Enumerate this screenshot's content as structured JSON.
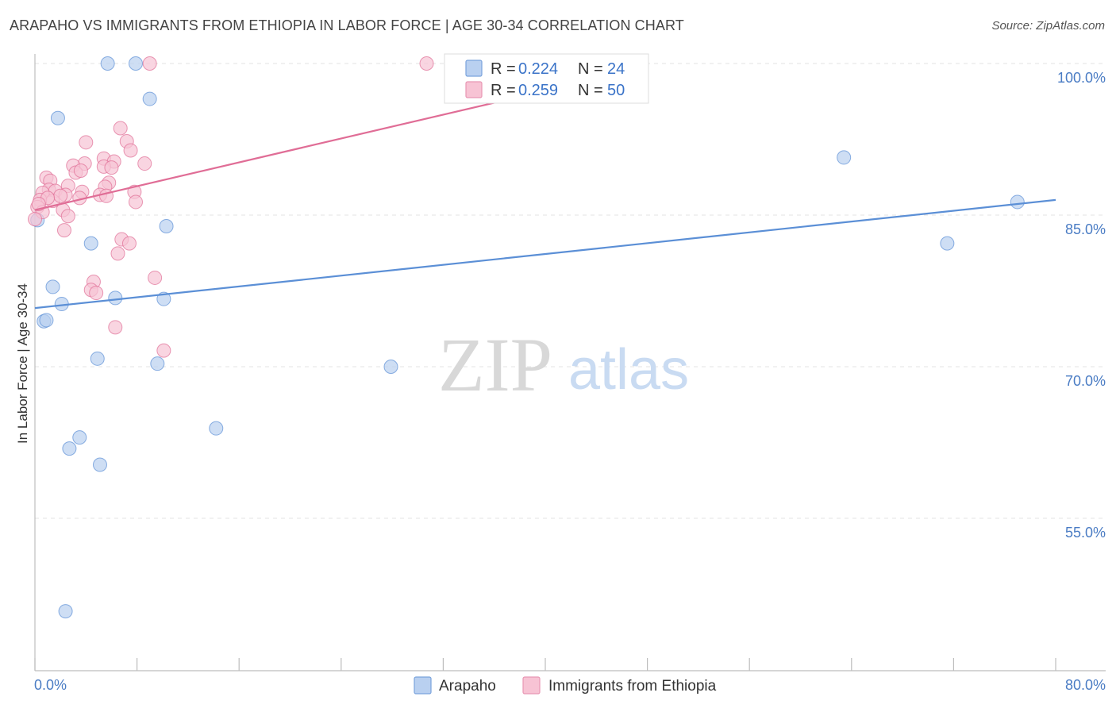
{
  "header": {
    "title": "ARAPAHO VS IMMIGRANTS FROM ETHIOPIA IN LABOR FORCE | AGE 30-34 CORRELATION CHART",
    "source": "Source: ZipAtlas.com"
  },
  "watermark": {
    "zip": "ZIP",
    "atlas": "atlas"
  },
  "chart_data": {
    "type": "scatter",
    "title": "ARAPAHO VS IMMIGRANTS FROM ETHIOPIA IN LABOR FORCE | AGE 30-34 CORRELATION CHART",
    "ylabel": "In Labor Force | Age 30-34",
    "xlabel": "",
    "xlim": [
      0,
      80
    ],
    "ylim": [
      40,
      102
    ],
    "x_tick_labels": {
      "left": "0.0%",
      "right": "80.0%"
    },
    "y_ticks": [
      {
        "value": 100,
        "label": "100.0%"
      },
      {
        "value": 85,
        "label": "85.0%"
      },
      {
        "value": 70,
        "label": "70.0%"
      },
      {
        "value": 55,
        "label": "55.0%"
      }
    ],
    "legend": [
      {
        "series": "Arapaho",
        "r_label": "R =",
        "r": "0.224",
        "n_label": "N =",
        "n": "24"
      },
      {
        "series": "Immigrants from Ethiopia",
        "r_label": "R =",
        "r": "0.259",
        "n_label": "N =",
        "n": "50"
      }
    ],
    "series": [
      {
        "name": "Arapaho",
        "color": "#5b8fd6",
        "fill": "#b9d0f0",
        "trend": {
          "x0": 0,
          "y0": 75.8,
          "x1": 80,
          "y1": 86.5
        },
        "points": [
          [
            5.7,
            100
          ],
          [
            7.9,
            100
          ],
          [
            9.0,
            96.5
          ],
          [
            1.8,
            94.6
          ],
          [
            0.2,
            84.5
          ],
          [
            4.4,
            82.2
          ],
          [
            10.3,
            83.9
          ],
          [
            1.4,
            77.9
          ],
          [
            2.1,
            76.2
          ],
          [
            6.3,
            76.8
          ],
          [
            10.1,
            76.7
          ],
          [
            0.7,
            74.5
          ],
          [
            0.9,
            74.6
          ],
          [
            4.9,
            70.8
          ],
          [
            9.6,
            70.3
          ],
          [
            27.9,
            70.0
          ],
          [
            3.5,
            63.0
          ],
          [
            2.7,
            61.9
          ],
          [
            14.2,
            63.9
          ],
          [
            5.1,
            60.3
          ],
          [
            2.4,
            45.8
          ],
          [
            63.4,
            90.7
          ],
          [
            71.5,
            82.2
          ],
          [
            77.0,
            86.3
          ]
        ]
      },
      {
        "name": "Immigrants from Ethiopia",
        "color": "#e06d96",
        "fill": "#f7c3d4",
        "trend": {
          "x0": 0,
          "y0": 85.5,
          "x1": 39,
          "y1": 97.0
        },
        "points": [
          [
            30.7,
            100
          ],
          [
            9.0,
            100
          ],
          [
            6.7,
            93.6
          ],
          [
            7.2,
            92.3
          ],
          [
            4.0,
            92.2
          ],
          [
            7.5,
            91.4
          ],
          [
            5.4,
            90.6
          ],
          [
            6.2,
            90.3
          ],
          [
            8.6,
            90.1
          ],
          [
            3.9,
            90.1
          ],
          [
            3.0,
            89.9
          ],
          [
            5.4,
            89.8
          ],
          [
            6.0,
            89.7
          ],
          [
            3.2,
            89.2
          ],
          [
            0.9,
            88.7
          ],
          [
            1.2,
            88.4
          ],
          [
            5.8,
            88.2
          ],
          [
            2.6,
            87.9
          ],
          [
            5.5,
            87.8
          ],
          [
            1.1,
            87.5
          ],
          [
            1.6,
            87.4
          ],
          [
            7.8,
            87.3
          ],
          [
            0.6,
            87.2
          ],
          [
            3.7,
            87.3
          ],
          [
            2.4,
            87.0
          ],
          [
            5.1,
            87.0
          ],
          [
            5.6,
            86.9
          ],
          [
            3.5,
            86.7
          ],
          [
            0.4,
            86.5
          ],
          [
            1.4,
            86.4
          ],
          [
            7.9,
            86.3
          ],
          [
            0.2,
            85.8
          ],
          [
            2.2,
            85.5
          ],
          [
            0.6,
            85.3
          ],
          [
            2.6,
            84.9
          ],
          [
            0.0,
            84.6
          ],
          [
            2.3,
            83.5
          ],
          [
            6.8,
            82.6
          ],
          [
            7.4,
            82.2
          ],
          [
            6.5,
            81.2
          ],
          [
            4.6,
            78.4
          ],
          [
            9.4,
            78.8
          ],
          [
            4.4,
            77.6
          ],
          [
            4.8,
            77.3
          ],
          [
            6.3,
            73.9
          ],
          [
            10.1,
            71.6
          ],
          [
            3.6,
            89.4
          ],
          [
            2.0,
            86.9
          ],
          [
            1.0,
            86.7
          ],
          [
            0.3,
            86.1
          ]
        ]
      }
    ]
  }
}
